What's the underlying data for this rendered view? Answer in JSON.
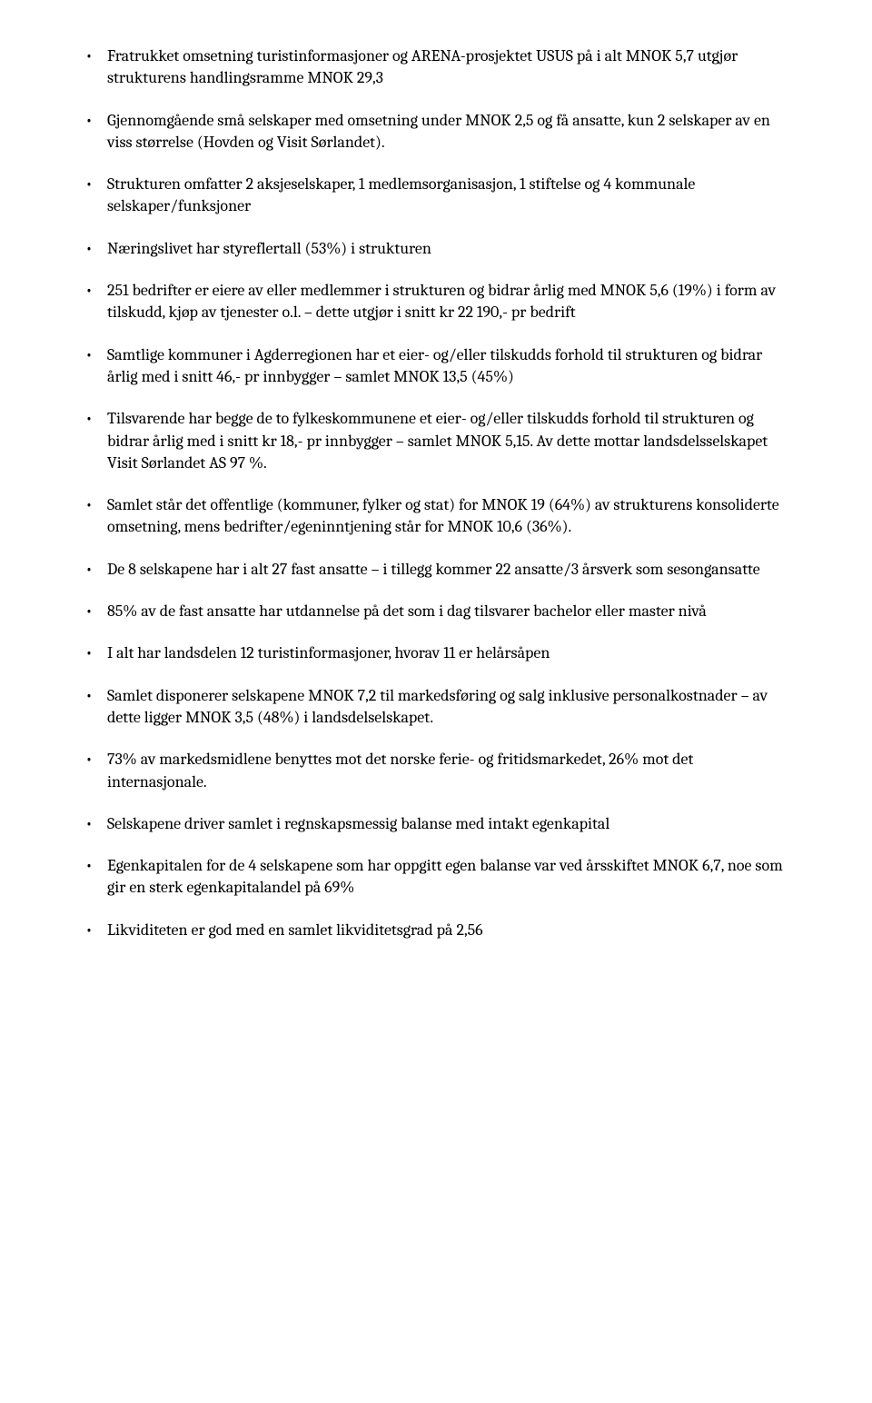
{
  "bullets": [
    "Fratrukket omsetning turistinformasjoner og ARENA-prosjektet USUS på i alt MNOK 5,7 utgjør strukturens handlingsramme MNOK 29,3",
    "Gjennomgående små selskaper med omsetning under MNOK 2,5 og få ansatte, kun 2 selskaper av en viss størrelse (Hovden og Visit Sørlandet).",
    "Strukturen omfatter 2 aksjeselskaper, 1 medlemsorganisasjon, 1 stiftelse og 4 kommunale selskaper/funksjoner",
    "Næringslivet har styreflertall (53%) i strukturen",
    "251 bedrifter er eiere av eller medlemmer i strukturen og bidrar årlig med MNOK 5,6 (19%) i form av tilskudd, kjøp av tjenester o.l. – dette utgjør i snitt kr 22 190,- pr bedrift",
    "Samtlige kommuner i Agderregionen har et eier- og/eller tilskudds forhold til strukturen og bidrar årlig med i snitt 46,- pr innbygger – samlet MNOK 13,5 (45%)",
    "Tilsvarende har begge de to fylkeskommunene et eier- og/eller tilskudds forhold til strukturen og bidrar årlig med i snitt kr 18,- pr innbygger – samlet MNOK 5,15. Av dette mottar landsdelsselskapet Visit Sørlandet AS 97 %.",
    "Samlet står det offentlige (kommuner, fylker og stat) for MNOK 19 (64%) av strukturens konsoliderte omsetning, mens bedrifter/egeninntjening står for MNOK 10,6 (36%).",
    "De 8 selskapene har i alt 27 fast ansatte – i tillegg kommer 22 ansatte/3 årsverk som sesongansatte",
    "85% av de fast ansatte har utdannelse på det som i dag tilsvarer bachelor eller master nivå",
    "I alt har landsdelen 12 turistinformasjoner, hvorav 11 er helårsåpen",
    "Samlet disponerer selskapene MNOK 7,2 til markedsføring og salg inklusive personalkostnader – av dette ligger MNOK 3,5 (48%) i landsdelselskapet.",
    "73% av markedsmidlene benyttes mot det norske ferie- og fritidsmarkedet, 26% mot det internasjonale.",
    "Selskapene driver samlet i regnskapsmessig balanse med intakt egenkapital",
    "Egenkapitalen for de 4 selskapene som har oppgitt egen balanse var ved årsskiftet MNOK 6,7, noe som gir en sterk egenkapitalandel på 69%",
    "Likviditeten er god med en samlet likviditetsgrad på 2,56"
  ]
}
